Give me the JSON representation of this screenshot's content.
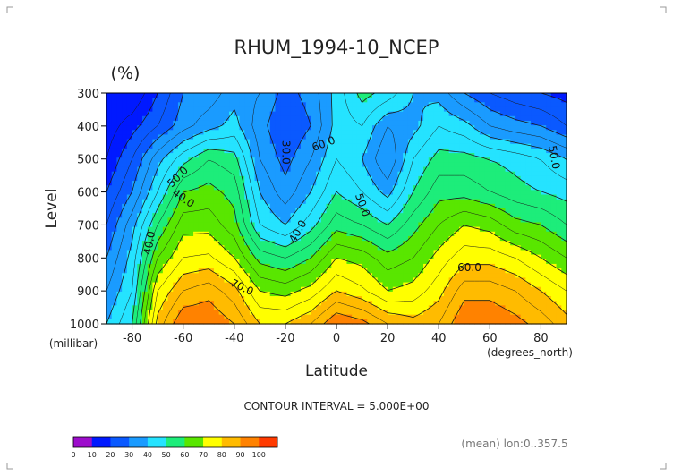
{
  "chart_data": {
    "type": "heatmap",
    "title": "RHUM_1994-10_NCEP",
    "units": "(%)",
    "xlabel": "Latitude",
    "ylabel": "Level",
    "x_unit": "(degrees_north)",
    "y_unit": "(millibar)",
    "xlim": [
      -90,
      90
    ],
    "ylim": [
      1000,
      300
    ],
    "x_ticks": [
      "-80",
      "-60",
      "-40",
      "-20",
      "0",
      "20",
      "40",
      "60",
      "80"
    ],
    "x_tick_values": [
      -80,
      -60,
      -40,
      -20,
      0,
      20,
      40,
      60,
      80
    ],
    "y_ticks": [
      "300",
      "400",
      "500",
      "600",
      "700",
      "800",
      "900",
      "1000"
    ],
    "y_tick_values": [
      300,
      400,
      500,
      600,
      700,
      800,
      900,
      1000
    ],
    "contour_interval_text": "CONTOUR INTERVAL = 5.000E+00",
    "mean_note": "(mean) lon:0..357.5",
    "levels": [
      300,
      400,
      500,
      600,
      700,
      800,
      900,
      1000
    ],
    "latitudes": [
      -90,
      -80,
      -70,
      -60,
      -50,
      -40,
      -30,
      -20,
      -10,
      0,
      10,
      20,
      30,
      40,
      50,
      60,
      70,
      80,
      90
    ],
    "values": [
      [
        10,
        10,
        20,
        30,
        32,
        38,
        35,
        28,
        32,
        42,
        52,
        48,
        40,
        38,
        30,
        25,
        22,
        20,
        18
      ],
      [
        12,
        18,
        25,
        33,
        38,
        42,
        32,
        25,
        30,
        42,
        45,
        35,
        38,
        45,
        42,
        35,
        32,
        30,
        25
      ],
      [
        15,
        25,
        38,
        48,
        55,
        52,
        35,
        28,
        35,
        45,
        40,
        30,
        45,
        52,
        52,
        50,
        48,
        45,
        40
      ],
      [
        20,
        30,
        45,
        60,
        62,
        58,
        40,
        32,
        40,
        50,
        45,
        38,
        50,
        58,
        58,
        55,
        52,
        50,
        48
      ],
      [
        25,
        38,
        55,
        68,
        68,
        62,
        45,
        40,
        48,
        58,
        55,
        50,
        58,
        65,
        70,
        68,
        62,
        60,
        55
      ],
      [
        30,
        42,
        65,
        75,
        76,
        70,
        58,
        55,
        60,
        70,
        68,
        62,
        65,
        72,
        78,
        78,
        75,
        70,
        65
      ],
      [
        35,
        45,
        75,
        85,
        88,
        82,
        70,
        68,
        72,
        80,
        76,
        70,
        72,
        78,
        88,
        88,
        85,
        80,
        75
      ],
      [
        40,
        50,
        82,
        95,
        95,
        90,
        80,
        80,
        85,
        95,
        92,
        85,
        82,
        85,
        95,
        95,
        92,
        88,
        82
      ]
    ],
    "contour_labels": [
      "30.0",
      "40.0",
      "40.0",
      "40.0",
      "50.0",
      "50.0",
      "50.0",
      "60.0",
      "60.0",
      "70.0"
    ],
    "colorbar": {
      "ticks": [
        "0",
        "10",
        "20",
        "30",
        "40",
        "50",
        "60",
        "70",
        "80",
        "90",
        "100"
      ],
      "colors": [
        "#9d0dcc",
        "#0019ff",
        "#0a59ff",
        "#1a9bff",
        "#25e3ff",
        "#1ded7a",
        "#59e600",
        "#ffff00",
        "#ffbb00",
        "#ff8200",
        "#ff3a00"
      ]
    }
  }
}
